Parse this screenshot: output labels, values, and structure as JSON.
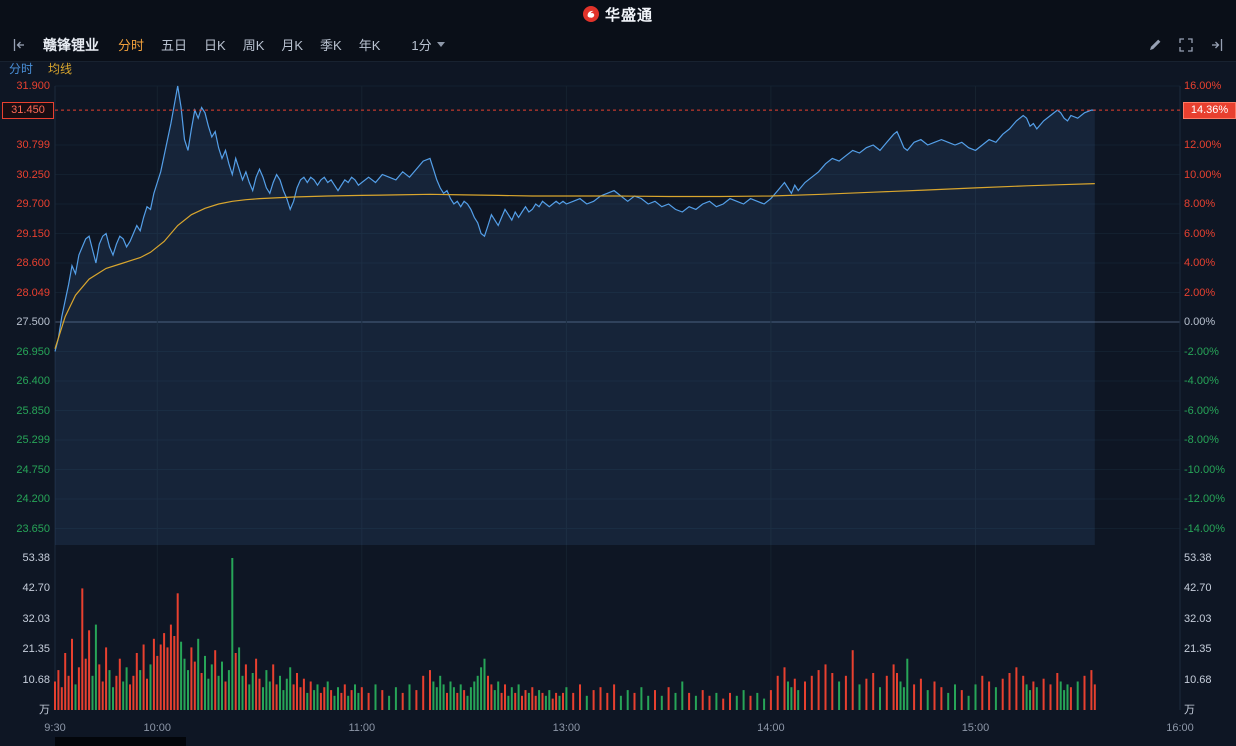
{
  "header": {
    "app_name": "华盛通"
  },
  "toolbar": {
    "stock_name": "赣锋锂业",
    "tabs": [
      {
        "label": "分时",
        "active": true
      },
      {
        "label": "五日",
        "active": false
      },
      {
        "label": "日K",
        "active": false
      },
      {
        "label": "周K",
        "active": false
      },
      {
        "label": "月K",
        "active": false
      },
      {
        "label": "季K",
        "active": false
      },
      {
        "label": "年K",
        "active": false
      }
    ],
    "period_selector": "1分"
  },
  "legend": {
    "items": [
      {
        "label": "分时"
      },
      {
        "label": "均线"
      }
    ]
  },
  "current": {
    "price": "31.450",
    "percent": "14.36%"
  },
  "colors": {
    "up": "#e8402f",
    "down": "#27a558",
    "flat": "#b9c2d0",
    "price_line": "#549fe8",
    "avg_line": "#d9a62e",
    "area_fill": "rgba(86,140,210,0.12)",
    "dotted_line": "#e8402f",
    "accent_tab": "#f0a03c",
    "grid_faint": "#13202f",
    "grid_vert": "#16222f",
    "grid_border": "#1c2a3c",
    "zero_line": "#4a5a74"
  },
  "chart_data": {
    "type": "line",
    "title": "赣锋锂业 分时",
    "prev_close": 27.5,
    "last_price": 31.45,
    "change_percent": 14.36,
    "session_minutes": 330,
    "x_ticks": [
      "9:30",
      "10:00",
      "11:00",
      "13:00",
      "14:00",
      "15:00",
      "16:00"
    ],
    "time_axis": [
      {
        "label": "9:30",
        "min": 0
      },
      {
        "label": "10:00",
        "min": 30
      },
      {
        "label": "11:00",
        "min": 90
      },
      {
        "label": "13:00",
        "min": 150
      },
      {
        "label": "14:00",
        "min": 210
      },
      {
        "label": "15:00",
        "min": 270
      },
      {
        "label": "16:00",
        "min": 330
      }
    ],
    "price_axis": [
      {
        "pct": 16,
        "price": "31.900",
        "percent": "16.00%"
      },
      {
        "pct": 12,
        "price": "30.799",
        "percent": "12.00%"
      },
      {
        "pct": 10,
        "price": "30.250",
        "percent": "10.00%"
      },
      {
        "pct": 8,
        "price": "29.700",
        "percent": "8.00%"
      },
      {
        "pct": 6,
        "price": "29.150",
        "percent": "6.00%"
      },
      {
        "pct": 4,
        "price": "28.600",
        "percent": "4.00%"
      },
      {
        "pct": 2,
        "price": "28.049",
        "percent": "2.00%"
      },
      {
        "pct": 0,
        "price": "27.500",
        "percent": "0.00%"
      },
      {
        "pct": -2,
        "price": "26.950",
        "percent": "-2.00%"
      },
      {
        "pct": -4,
        "price": "26.400",
        "percent": "-4.00%"
      },
      {
        "pct": -6,
        "price": "25.850",
        "percent": "-6.00%"
      },
      {
        "pct": -8,
        "price": "25.299",
        "percent": "-8.00%"
      },
      {
        "pct": -10,
        "price": "24.750",
        "percent": "-10.00%"
      },
      {
        "pct": -12,
        "price": "24.200",
        "percent": "-12.00%"
      },
      {
        "pct": -14,
        "price": "23.650",
        "percent": "-14.00%"
      }
    ],
    "volume_axis": {
      "max": 53.38,
      "unit": "万",
      "labels": [
        {
          "v": 53.38,
          "text": "53.38"
        },
        {
          "v": 42.7,
          "text": "42.70"
        },
        {
          "v": 32.03,
          "text": "32.03"
        },
        {
          "v": 21.35,
          "text": "21.35"
        },
        {
          "v": 10.68,
          "text": "10.68"
        }
      ]
    },
    "series": [
      [
        0,
        26.95,
        10
      ],
      [
        1,
        27.2,
        14
      ],
      [
        2,
        27.6,
        8
      ],
      [
        3,
        27.9,
        20
      ],
      [
        4,
        28.2,
        12
      ],
      [
        5,
        28.55,
        25
      ],
      [
        6,
        28.4,
        9
      ],
      [
        7,
        28.75,
        15
      ],
      [
        8,
        28.9,
        42.7
      ],
      [
        9,
        29.05,
        18
      ],
      [
        10,
        29.1,
        28
      ],
      [
        11,
        28.85,
        12
      ],
      [
        12,
        28.6,
        30
      ],
      [
        13,
        28.95,
        16
      ],
      [
        14,
        29.1,
        10
      ],
      [
        15,
        29.15,
        22
      ],
      [
        16,
        28.9,
        14
      ],
      [
        17,
        28.75,
        8
      ],
      [
        18,
        28.95,
        12
      ],
      [
        19,
        29.1,
        18
      ],
      [
        20,
        29.05,
        10
      ],
      [
        21,
        28.9,
        15
      ],
      [
        22,
        29.0,
        9
      ],
      [
        23,
        29.15,
        12
      ],
      [
        24,
        29.3,
        20
      ],
      [
        25,
        29.2,
        14
      ],
      [
        26,
        29.45,
        23
      ],
      [
        27,
        29.65,
        11
      ],
      [
        28,
        29.6,
        16
      ],
      [
        29,
        29.9,
        25
      ],
      [
        30,
        30.1,
        19
      ],
      [
        31,
        30.3,
        23
      ],
      [
        32,
        30.6,
        27
      ],
      [
        33,
        30.9,
        22
      ],
      [
        34,
        31.2,
        30
      ],
      [
        35,
        31.55,
        26
      ],
      [
        36,
        31.9,
        41
      ],
      [
        37,
        31.5,
        24
      ],
      [
        38,
        30.9,
        18
      ],
      [
        39,
        30.7,
        14
      ],
      [
        40,
        31.1,
        22
      ],
      [
        41,
        31.45,
        17
      ],
      [
        42,
        31.3,
        25
      ],
      [
        43,
        31.5,
        13
      ],
      [
        44,
        31.4,
        19
      ],
      [
        45,
        31.15,
        11
      ],
      [
        46,
        30.95,
        16
      ],
      [
        47,
        31.05,
        21
      ],
      [
        48,
        30.75,
        12
      ],
      [
        49,
        30.55,
        17
      ],
      [
        50,
        30.7,
        10
      ],
      [
        51,
        30.45,
        14
      ],
      [
        52,
        30.25,
        53.38
      ],
      [
        53,
        30.55,
        20
      ],
      [
        54,
        30.35,
        22
      ],
      [
        55,
        30.15,
        12
      ],
      [
        56,
        30.3,
        16
      ],
      [
        57,
        30.1,
        9
      ],
      [
        58,
        29.95,
        13
      ],
      [
        59,
        30.2,
        18
      ],
      [
        60,
        30.35,
        11
      ],
      [
        61,
        30.2,
        8
      ],
      [
        62,
        30.0,
        14
      ],
      [
        63,
        29.9,
        10
      ],
      [
        64,
        30.1,
        16
      ],
      [
        65,
        30.25,
        9
      ],
      [
        66,
        30.15,
        12
      ],
      [
        67,
        29.95,
        7
      ],
      [
        68,
        29.8,
        11
      ],
      [
        69,
        29.6,
        15
      ],
      [
        70,
        29.75,
        9
      ],
      [
        71,
        30.0,
        13
      ],
      [
        72,
        30.15,
        8
      ],
      [
        73,
        30.2,
        11
      ],
      [
        74,
        30.1,
        6
      ],
      [
        75,
        30.2,
        10
      ],
      [
        76,
        30.15,
        7
      ],
      [
        77,
        30.05,
        9
      ],
      [
        78,
        30.15,
        6
      ],
      [
        79,
        30.2,
        8
      ],
      [
        80,
        30.1,
        10
      ],
      [
        81,
        30.15,
        7
      ],
      [
        82,
        30.05,
        5
      ],
      [
        83,
        29.95,
        8
      ],
      [
        84,
        30.05,
        6
      ],
      [
        85,
        30.15,
        9
      ],
      [
        86,
        30.1,
        5
      ],
      [
        87,
        30.2,
        7
      ],
      [
        88,
        30.15,
        9
      ],
      [
        89,
        30.05,
        6
      ],
      [
        90,
        30.1,
        8
      ],
      [
        92,
        30.2,
        6
      ],
      [
        94,
        30.1,
        9
      ],
      [
        96,
        30.25,
        7
      ],
      [
        98,
        30.2,
        5
      ],
      [
        100,
        30.15,
        8
      ],
      [
        102,
        30.3,
        6
      ],
      [
        104,
        30.2,
        9
      ],
      [
        106,
        30.35,
        7
      ],
      [
        108,
        30.5,
        12
      ],
      [
        110,
        30.55,
        14
      ],
      [
        111,
        30.35,
        10
      ],
      [
        112,
        30.15,
        8
      ],
      [
        113,
        30.0,
        12
      ],
      [
        114,
        29.9,
        9
      ],
      [
        115,
        29.95,
        6
      ],
      [
        116,
        29.8,
        10
      ],
      [
        117,
        29.7,
        8
      ],
      [
        118,
        29.75,
        6
      ],
      [
        119,
        29.65,
        9
      ],
      [
        120,
        29.75,
        7
      ],
      [
        121,
        29.7,
        5
      ],
      [
        122,
        29.6,
        8
      ],
      [
        123,
        29.45,
        10
      ],
      [
        124,
        29.35,
        12
      ],
      [
        125,
        29.15,
        15
      ],
      [
        126,
        29.1,
        18
      ],
      [
        127,
        29.3,
        12
      ],
      [
        128,
        29.5,
        9
      ],
      [
        129,
        29.4,
        7
      ],
      [
        130,
        29.3,
        10
      ],
      [
        131,
        29.45,
        6
      ],
      [
        132,
        29.6,
        9
      ],
      [
        133,
        29.5,
        5
      ],
      [
        134,
        29.4,
        8
      ],
      [
        135,
        29.55,
        6
      ],
      [
        136,
        29.45,
        9
      ],
      [
        137,
        29.55,
        5
      ],
      [
        138,
        29.65,
        7
      ],
      [
        139,
        29.55,
        6
      ],
      [
        140,
        29.6,
        8
      ],
      [
        141,
        29.7,
        5
      ],
      [
        142,
        29.65,
        7
      ],
      [
        143,
        29.75,
        6
      ],
      [
        144,
        29.7,
        5
      ],
      [
        145,
        29.65,
        7
      ],
      [
        146,
        29.7,
        4
      ],
      [
        147,
        29.75,
        6
      ],
      [
        148,
        29.7,
        5
      ],
      [
        149,
        29.75,
        6
      ],
      [
        150,
        29.7,
        8
      ],
      [
        152,
        29.75,
        6
      ],
      [
        154,
        29.8,
        9
      ],
      [
        156,
        29.7,
        5
      ],
      [
        158,
        29.75,
        7
      ],
      [
        160,
        29.85,
        8
      ],
      [
        162,
        29.9,
        6
      ],
      [
        164,
        29.95,
        9
      ],
      [
        166,
        29.85,
        5
      ],
      [
        168,
        29.75,
        7
      ],
      [
        170,
        29.85,
        6
      ],
      [
        172,
        29.8,
        8
      ],
      [
        174,
        29.7,
        5
      ],
      [
        176,
        29.75,
        7
      ],
      [
        178,
        29.65,
        5
      ],
      [
        180,
        29.7,
        8
      ],
      [
        182,
        29.6,
        6
      ],
      [
        184,
        29.55,
        10
      ],
      [
        186,
        29.65,
        6
      ],
      [
        188,
        29.6,
        5
      ],
      [
        190,
        29.7,
        7
      ],
      [
        192,
        29.75,
        5
      ],
      [
        194,
        29.65,
        6
      ],
      [
        196,
        29.7,
        4
      ],
      [
        198,
        29.8,
        6
      ],
      [
        200,
        29.75,
        5
      ],
      [
        202,
        29.7,
        7
      ],
      [
        204,
        29.8,
        5
      ],
      [
        206,
        29.75,
        6
      ],
      [
        208,
        29.7,
        4
      ],
      [
        210,
        29.8,
        7
      ],
      [
        212,
        29.95,
        12
      ],
      [
        214,
        30.1,
        15
      ],
      [
        215,
        30.0,
        10
      ],
      [
        216,
        29.9,
        8
      ],
      [
        217,
        30.05,
        11
      ],
      [
        218,
        29.95,
        7
      ],
      [
        220,
        30.1,
        10
      ],
      [
        222,
        30.2,
        12
      ],
      [
        224,
        30.3,
        14
      ],
      [
        226,
        30.45,
        16
      ],
      [
        228,
        30.55,
        13
      ],
      [
        230,
        30.5,
        10
      ],
      [
        232,
        30.6,
        12
      ],
      [
        234,
        30.7,
        21
      ],
      [
        236,
        30.65,
        9
      ],
      [
        238,
        30.75,
        11
      ],
      [
        240,
        30.8,
        13
      ],
      [
        242,
        30.7,
        8
      ],
      [
        244,
        30.85,
        12
      ],
      [
        246,
        31.0,
        16
      ],
      [
        247,
        31.05,
        13
      ],
      [
        248,
        30.9,
        10
      ],
      [
        249,
        30.75,
        8
      ],
      [
        250,
        30.7,
        18
      ],
      [
        252,
        30.85,
        9
      ],
      [
        254,
        30.9,
        11
      ],
      [
        256,
        30.8,
        7
      ],
      [
        258,
        30.85,
        10
      ],
      [
        260,
        30.9,
        8
      ],
      [
        262,
        30.85,
        6
      ],
      [
        264,
        30.8,
        9
      ],
      [
        266,
        30.85,
        7
      ],
      [
        268,
        30.75,
        5
      ],
      [
        270,
        30.7,
        9
      ],
      [
        272,
        30.8,
        12
      ],
      [
        274,
        30.9,
        10
      ],
      [
        276,
        30.85,
        8
      ],
      [
        278,
        31.0,
        11
      ],
      [
        280,
        31.1,
        13
      ],
      [
        282,
        31.25,
        15
      ],
      [
        284,
        31.35,
        12
      ],
      [
        285,
        31.3,
        9
      ],
      [
        286,
        31.15,
        7
      ],
      [
        287,
        31.2,
        10
      ],
      [
        288,
        31.1,
        8
      ],
      [
        290,
        31.25,
        11
      ],
      [
        292,
        31.35,
        9
      ],
      [
        294,
        31.45,
        13
      ],
      [
        295,
        31.4,
        10
      ],
      [
        296,
        31.3,
        7
      ],
      [
        297,
        31.25,
        9
      ],
      [
        298,
        31.35,
        8
      ],
      [
        300,
        31.3,
        10
      ],
      [
        302,
        31.4,
        12
      ],
      [
        304,
        31.45,
        14
      ],
      [
        305,
        31.45,
        9
      ]
    ],
    "avg_series": [
      [
        0,
        27.0
      ],
      [
        3,
        27.6
      ],
      [
        6,
        28.0
      ],
      [
        10,
        28.3
      ],
      [
        15,
        28.5
      ],
      [
        20,
        28.6
      ],
      [
        25,
        28.7
      ],
      [
        28,
        28.8
      ],
      [
        32,
        29.0
      ],
      [
        36,
        29.3
      ],
      [
        40,
        29.5
      ],
      [
        44,
        29.62
      ],
      [
        48,
        29.7
      ],
      [
        52,
        29.75
      ],
      [
        56,
        29.78
      ],
      [
        60,
        29.8
      ],
      [
        70,
        29.83
      ],
      [
        80,
        29.85
      ],
      [
        90,
        29.86
      ],
      [
        100,
        29.87
      ],
      [
        110,
        29.88
      ],
      [
        120,
        29.87
      ],
      [
        130,
        29.86
      ],
      [
        140,
        29.85
      ],
      [
        150,
        29.85
      ],
      [
        165,
        29.85
      ],
      [
        180,
        29.84
      ],
      [
        195,
        29.84
      ],
      [
        210,
        29.85
      ],
      [
        225,
        29.88
      ],
      [
        240,
        29.92
      ],
      [
        255,
        29.96
      ],
      [
        270,
        30.0
      ],
      [
        285,
        30.04
      ],
      [
        295,
        30.06
      ],
      [
        305,
        30.08
      ]
    ]
  }
}
